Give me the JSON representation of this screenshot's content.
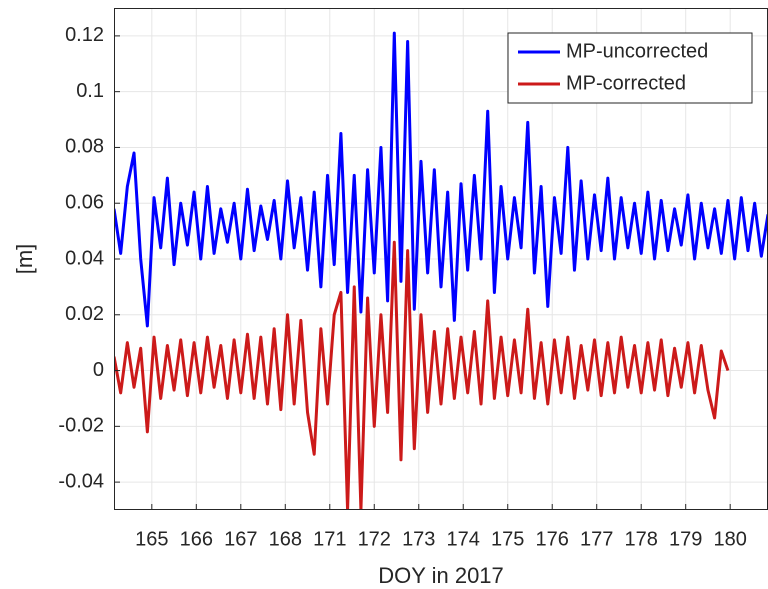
{
  "chart_data": {
    "type": "line",
    "xlabel": "DOY in 2017",
    "ylabel": "[m]",
    "x": [
      0.15,
      0.3,
      0.45,
      0.6,
      0.75,
      0.9,
      1.05,
      1.2,
      1.35,
      1.5,
      1.65,
      1.8,
      1.95,
      2.1,
      2.25,
      2.4,
      2.55,
      2.7,
      2.85,
      3,
      3.15,
      3.3,
      3.45,
      3.6,
      3.75,
      3.9,
      4.05,
      4.2,
      4.35,
      4.5,
      4.65,
      4.8,
      4.95,
      5.1,
      5.25,
      5.4,
      5.55,
      5.7,
      5.85,
      6,
      6.15,
      6.3,
      6.45,
      6.6,
      6.75,
      6.9,
      7.05,
      7.2,
      7.35,
      7.5,
      7.65,
      7.8,
      7.95,
      8.1,
      8.25,
      8.4,
      8.55,
      8.7,
      8.85,
      9,
      9.15,
      9.3,
      9.45,
      9.6,
      9.75,
      9.9,
      10.05,
      10.2,
      10.35,
      10.5,
      10.65,
      10.8,
      10.95,
      11.1,
      11.25,
      11.4,
      11.55,
      11.7,
      11.85,
      12,
      12.15,
      12.3,
      12.45,
      12.6,
      12.75,
      12.9,
      13.05,
      13.2,
      13.35,
      13.5,
      13.65,
      13.8,
      13.95,
      14.1,
      14.25,
      14.4,
      14.55,
      14.7,
      14.85
    ],
    "series": [
      {
        "name": "MP-uncorrected",
        "color": "#0000ff",
        "values": [
          0.058,
          0.042,
          0.066,
          0.078,
          0.04,
          0.016,
          0.062,
          0.044,
          0.069,
          0.038,
          0.06,
          0.045,
          0.064,
          0.04,
          0.066,
          0.042,
          0.058,
          0.046,
          0.06,
          0.04,
          0.065,
          0.043,
          0.059,
          0.047,
          0.061,
          0.04,
          0.068,
          0.044,
          0.062,
          0.036,
          0.064,
          0.03,
          0.07,
          0.038,
          0.085,
          0.028,
          0.07,
          0.021,
          0.072,
          0.035,
          0.08,
          0.025,
          0.121,
          0.032,
          0.118,
          0.022,
          0.075,
          0.035,
          0.072,
          0.03,
          0.064,
          0.018,
          0.067,
          0.036,
          0.07,
          0.04,
          0.093,
          0.028,
          0.066,
          0.04,
          0.062,
          0.044,
          0.089,
          0.035,
          0.066,
          0.023,
          0.062,
          0.042,
          0.08,
          0.036,
          0.068,
          0.04,
          0.063,
          0.043,
          0.069,
          0.04,
          0.062,
          0.044,
          0.06,
          0.042,
          0.064,
          0.04,
          0.061,
          0.043,
          0.058,
          0.045,
          0.063,
          0.04,
          0.06,
          0.044,
          0.058,
          0.042,
          0.061,
          0.04,
          0.062,
          0.043,
          0.06,
          0.041,
          0.056
        ]
      },
      {
        "name": "MP-corrected",
        "color": "#cc1a1a",
        "values": [
          0.005,
          -0.008,
          0.01,
          -0.006,
          0.008,
          -0.022,
          0.012,
          -0.01,
          0.009,
          -0.007,
          0.011,
          -0.009,
          0.01,
          -0.008,
          0.012,
          -0.006,
          0.009,
          -0.01,
          0.011,
          -0.008,
          0.013,
          -0.01,
          0.012,
          -0.012,
          0.015,
          -0.014,
          0.02,
          -0.012,
          0.018,
          -0.015,
          -0.03,
          0.015,
          -0.012,
          0.02,
          0.028,
          -0.05,
          0.03,
          -0.05,
          0.026,
          -0.02,
          0.02,
          -0.015,
          0.046,
          -0.032,
          0.043,
          -0.028,
          0.02,
          -0.015,
          0.014,
          -0.012,
          0.015,
          -0.01,
          0.012,
          -0.008,
          0.014,
          -0.012,
          0.025,
          -0.01,
          0.012,
          -0.009,
          0.011,
          -0.008,
          0.022,
          -0.01,
          0.01,
          -0.012,
          0.011,
          -0.008,
          0.012,
          -0.01,
          0.009,
          -0.007,
          0.011,
          -0.009,
          0.01,
          -0.008,
          0.012,
          -0.006,
          0.009,
          -0.008,
          0.01,
          -0.007,
          0.011,
          -0.009,
          0.008,
          -0.006,
          0.01,
          -0.008,
          0.009,
          -0.007,
          -0.017,
          0.007,
          0,
          null,
          null,
          null,
          null,
          null,
          null
        ]
      }
    ],
    "xlim": [
      0.15,
      14.85
    ],
    "ylim": [
      -0.05,
      0.13
    ],
    "xticks": [
      {
        "value": 1,
        "label": "165"
      },
      {
        "value": 2,
        "label": "166"
      },
      {
        "value": 3,
        "label": "167"
      },
      {
        "value": 4,
        "label": "168"
      },
      {
        "value": 5,
        "label": "171"
      },
      {
        "value": 6,
        "label": "172"
      },
      {
        "value": 7,
        "label": "173"
      },
      {
        "value": 8,
        "label": "174"
      },
      {
        "value": 9,
        "label": "175"
      },
      {
        "value": 10,
        "label": "176"
      },
      {
        "value": 11,
        "label": "177"
      },
      {
        "value": 12,
        "label": "178"
      },
      {
        "value": 13,
        "label": "179"
      },
      {
        "value": 14,
        "label": "180"
      }
    ],
    "yticks": [
      -0.04,
      -0.02,
      0,
      0.02,
      0.04,
      0.06,
      0.08,
      0.1,
      0.12
    ],
    "grid": true,
    "legend": "upper right"
  }
}
